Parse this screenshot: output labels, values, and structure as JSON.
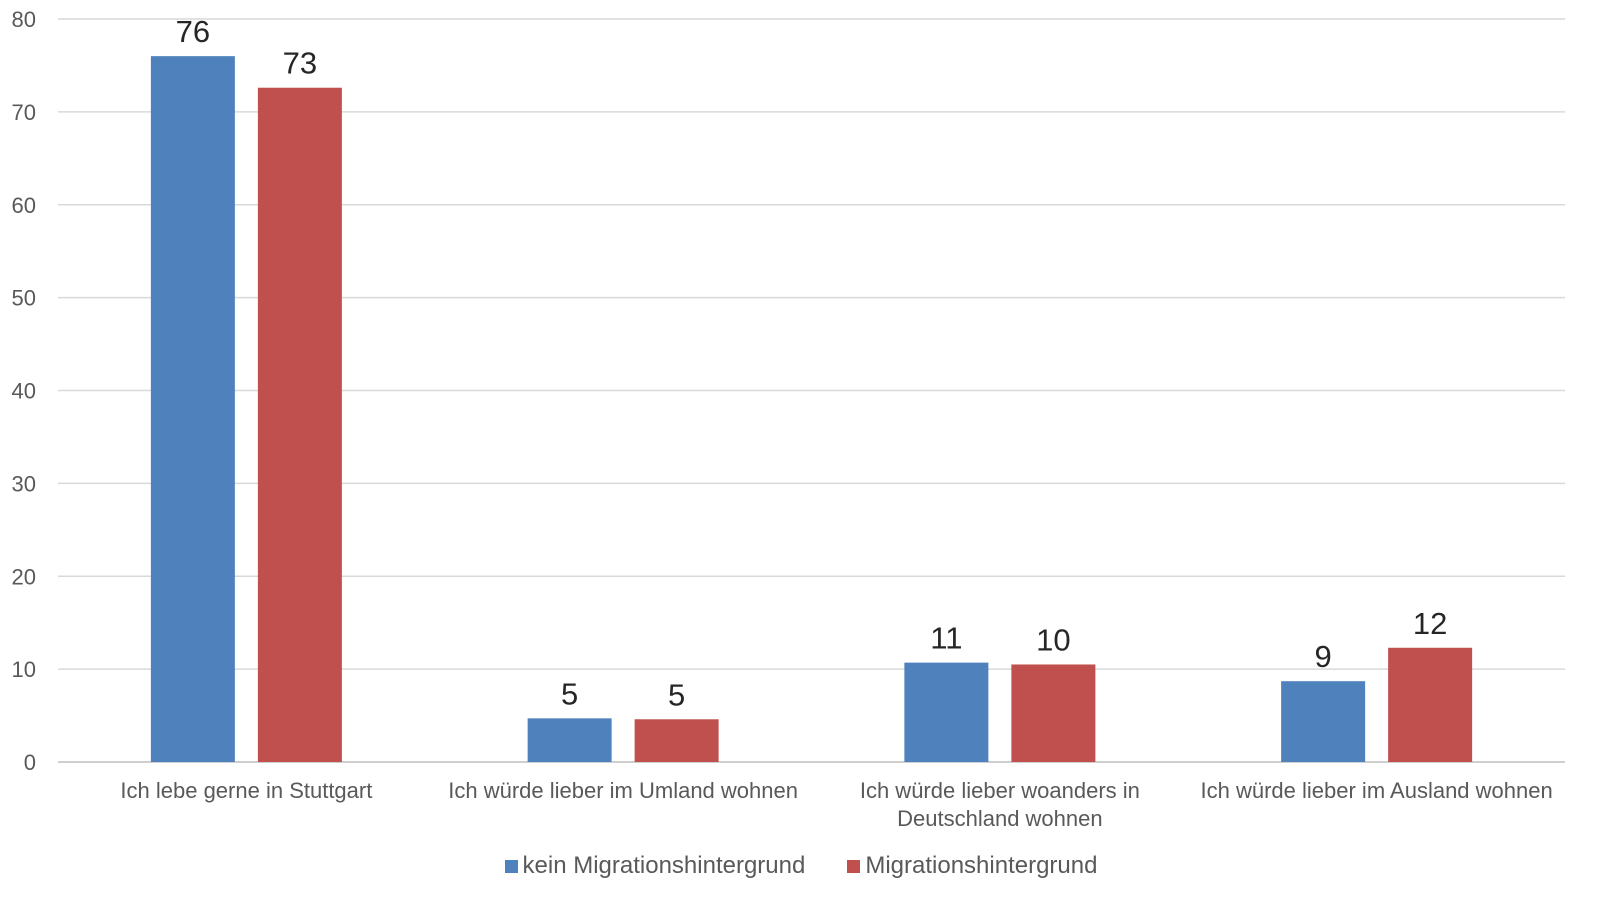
{
  "chart_data": {
    "type": "bar",
    "categories": [
      [
        "Ich lebe gerne in Stuttgart"
      ],
      [
        "Ich würde lieber im Umland wohnen"
      ],
      [
        "Ich würde lieber woanders in",
        "Deutschland wohnen"
      ],
      [
        "Ich würde lieber im Ausland wohnen"
      ]
    ],
    "series": [
      {
        "name": "kein Migrationshintergrund",
        "color": "#4f81bd",
        "values": [
          76,
          5,
          11,
          9
        ],
        "labels": [
          "76",
          "5",
          "11",
          "9"
        ],
        "heights": [
          76,
          4.7,
          10.7,
          8.7
        ]
      },
      {
        "name": "Migrationshintergrund",
        "color": "#c0504d",
        "values": [
          73,
          5,
          10,
          12
        ],
        "labels": [
          "73",
          "5",
          "10",
          "12"
        ],
        "heights": [
          72.6,
          4.6,
          10.5,
          12.3
        ]
      }
    ],
    "ylim": [
      0,
      80
    ],
    "yticks": [
      "0",
      "10",
      "20",
      "30",
      "40",
      "50",
      "60",
      "70",
      "80"
    ],
    "grid": true,
    "legend_position": "bottom"
  }
}
